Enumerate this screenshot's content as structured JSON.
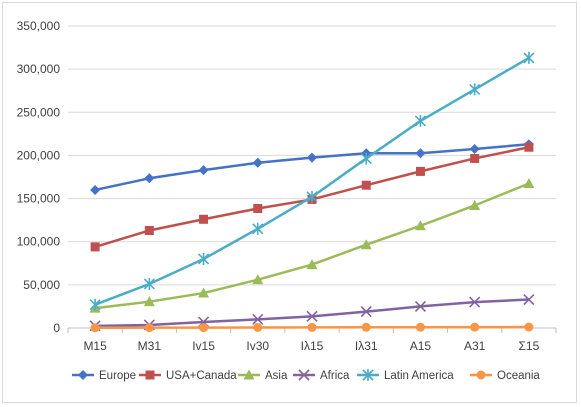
{
  "chart_data": {
    "type": "line",
    "categories": [
      "M15",
      "M31",
      "Iv15",
      "Iv30",
      "Iλ15",
      "Iλ31",
      "A15",
      "A31",
      "Σ15"
    ],
    "ylim": [
      0,
      350000
    ],
    "yticks": [
      0,
      50000,
      100000,
      150000,
      200000,
      250000,
      300000,
      350000
    ],
    "ytick_labels": [
      "0",
      "50,000",
      "100,000",
      "150,000",
      "200,000",
      "250,000",
      "300,000",
      "350,000"
    ],
    "grid": true,
    "legend_position": "bottom",
    "series": [
      {
        "name": "Europe",
        "color": "#4472c4",
        "marker": "diamond",
        "values": [
          160000,
          173500,
          183000,
          191500,
          197500,
          202500,
          202500,
          207500,
          213000
        ]
      },
      {
        "name": "USA+Canada",
        "color": "#c0504d",
        "marker": "square",
        "values": [
          94000,
          113000,
          126000,
          138500,
          149000,
          165500,
          181500,
          196500,
          209500
        ]
      },
      {
        "name": "Asia",
        "color": "#9bbb59",
        "marker": "triangle",
        "values": [
          23000,
          30500,
          40500,
          56000,
          73500,
          96500,
          118500,
          142000,
          167500
        ]
      },
      {
        "name": "Africa",
        "color": "#8064a2",
        "marker": "x",
        "values": [
          2500,
          3500,
          7000,
          10000,
          13500,
          19000,
          25000,
          30000,
          33000
        ]
      },
      {
        "name": "Latin America",
        "color": "#4bacc6",
        "marker": "star",
        "values": [
          27000,
          51000,
          80000,
          115000,
          152000,
          196500,
          240000,
          276500,
          313000
        ]
      },
      {
        "name": "Oceania",
        "color": "#f79646",
        "marker": "circle",
        "values": [
          300,
          400,
          500,
          600,
          700,
          800,
          900,
          1000,
          1100
        ]
      }
    ]
  }
}
